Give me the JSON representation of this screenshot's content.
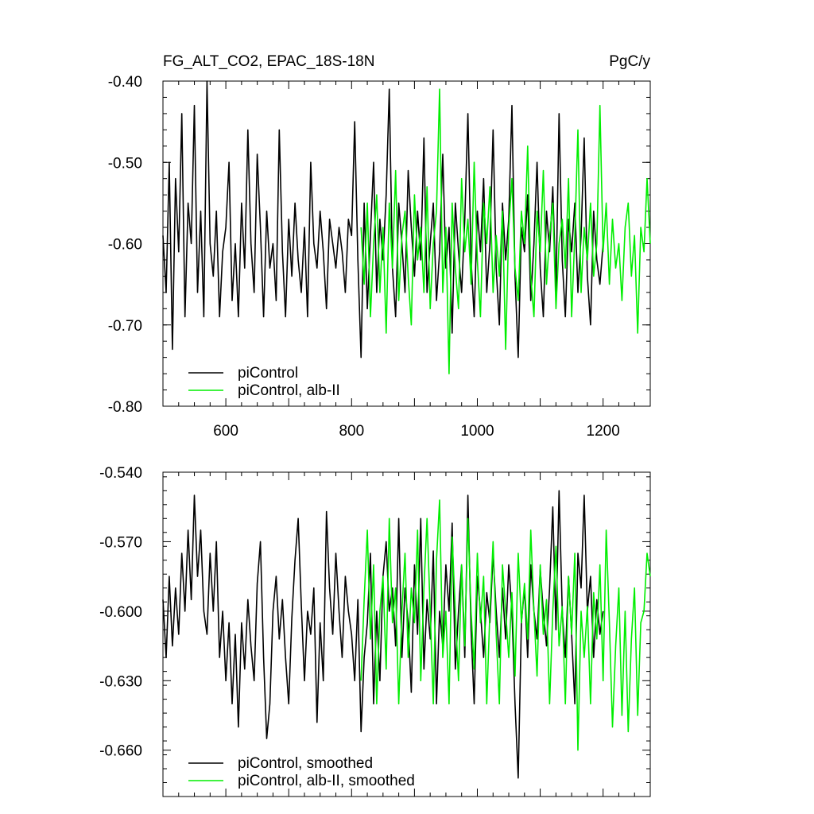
{
  "header": {
    "title": "FG_ALT_CO2, EPAC_18S-18N",
    "units": "PgC/y"
  },
  "colors": {
    "piControl": "#000000",
    "alb": "#00ee00"
  },
  "chart_data": [
    {
      "type": "line",
      "panel": "top",
      "xlim": [
        500,
        1275
      ],
      "ylim": [
        -0.8,
        -0.4
      ],
      "xticks": [
        600,
        800,
        1000,
        1200
      ],
      "xtick_labels": [
        "600",
        "800",
        "1000",
        "1200"
      ],
      "yticks": [
        -0.8,
        -0.7,
        -0.6,
        -0.5,
        -0.4
      ],
      "ytick_labels": [
        "-0.80",
        "-0.70",
        "-0.60",
        "-0.50",
        "-0.40"
      ],
      "legend_position": "bottom-left",
      "series": [
        {
          "name": "piControl",
          "color": "#000000",
          "x": [
            500,
            505,
            510,
            515,
            520,
            525,
            530,
            535,
            540,
            545,
            550,
            555,
            560,
            565,
            570,
            575,
            580,
            585,
            590,
            595,
            600,
            605,
            610,
            615,
            620,
            625,
            630,
            635,
            640,
            645,
            650,
            655,
            660,
            665,
            670,
            675,
            680,
            685,
            690,
            695,
            700,
            705,
            710,
            715,
            720,
            725,
            730,
            735,
            740,
            745,
            750,
            755,
            760,
            765,
            770,
            775,
            780,
            785,
            790,
            795,
            800,
            805,
            810,
            815,
            820,
            825,
            830,
            835,
            840,
            845,
            850,
            855,
            860,
            865,
            870,
            875,
            880,
            885,
            890,
            895,
            900,
            905,
            910,
            915,
            920,
            925,
            930,
            935,
            940,
            945,
            950,
            955,
            960,
            965,
            970,
            975,
            980,
            985,
            990,
            995,
            1000,
            1005,
            1010,
            1015,
            1020,
            1025,
            1030,
            1035,
            1040,
            1045,
            1050,
            1055,
            1060,
            1065,
            1070,
            1075,
            1080,
            1085,
            1090,
            1095,
            1100,
            1105,
            1110,
            1115,
            1120,
            1125,
            1130,
            1135,
            1140,
            1145,
            1150,
            1155,
            1160,
            1165,
            1170,
            1175,
            1180,
            1185,
            1190,
            1195,
            1200
          ],
          "y": [
            -0.59,
            -0.66,
            -0.5,
            -0.73,
            -0.52,
            -0.61,
            -0.44,
            -0.69,
            -0.55,
            -0.6,
            -0.43,
            -0.66,
            -0.56,
            -0.69,
            -0.4,
            -0.6,
            -0.64,
            -0.56,
            -0.69,
            -0.61,
            -0.58,
            -0.5,
            -0.67,
            -0.6,
            -0.69,
            -0.55,
            -0.63,
            -0.46,
            -0.6,
            -0.66,
            -0.49,
            -0.58,
            -0.69,
            -0.56,
            -0.63,
            -0.6,
            -0.67,
            -0.46,
            -0.61,
            -0.69,
            -0.57,
            -0.64,
            -0.55,
            -0.62,
            -0.66,
            -0.58,
            -0.69,
            -0.5,
            -0.6,
            -0.63,
            -0.56,
            -0.61,
            -0.68,
            -0.57,
            -0.6,
            -0.63,
            -0.58,
            -0.61,
            -0.66,
            -0.57,
            -0.59,
            -0.45,
            -0.62,
            -0.74,
            -0.55,
            -0.68,
            -0.59,
            -0.5,
            -0.66,
            -0.57,
            -0.62,
            -0.54,
            -0.41,
            -0.63,
            -0.69,
            -0.55,
            -0.6,
            -0.66,
            -0.51,
            -0.58,
            -0.64,
            -0.56,
            -0.62,
            -0.47,
            -0.66,
            -0.6,
            -0.55,
            -0.67,
            -0.61,
            -0.49,
            -0.63,
            -0.58,
            -0.71,
            -0.55,
            -0.61,
            -0.66,
            -0.57,
            -0.44,
            -0.62,
            -0.69,
            -0.56,
            -0.61,
            -0.52,
            -0.66,
            -0.6,
            -0.46,
            -0.63,
            -0.7,
            -0.55,
            -0.62,
            -0.57,
            -0.43,
            -0.64,
            -0.74,
            -0.58,
            -0.61,
            -0.54,
            -0.67,
            -0.6,
            -0.5,
            -0.63,
            -0.69,
            -0.56,
            -0.61,
            -0.53,
            -0.66,
            -0.44,
            -0.62,
            -0.69,
            -0.57,
            -0.61,
            -0.55,
            -0.66,
            -0.59,
            -0.47,
            -0.64,
            -0.7,
            -0.56,
            -0.62,
            -0.65,
            -0.6
          ]
        },
        {
          "name": "piControl, alb-II",
          "color": "#00ee00",
          "x": [
            815,
            820,
            825,
            830,
            835,
            840,
            845,
            850,
            855,
            860,
            865,
            870,
            875,
            880,
            885,
            890,
            895,
            900,
            905,
            910,
            915,
            920,
            925,
            930,
            935,
            940,
            945,
            950,
            955,
            960,
            965,
            970,
            975,
            980,
            985,
            990,
            995,
            1000,
            1005,
            1010,
            1015,
            1020,
            1025,
            1030,
            1035,
            1040,
            1045,
            1050,
            1055,
            1060,
            1065,
            1070,
            1075,
            1080,
            1085,
            1090,
            1095,
            1100,
            1105,
            1110,
            1115,
            1120,
            1125,
            1130,
            1135,
            1140,
            1145,
            1150,
            1155,
            1160,
            1165,
            1170,
            1175,
            1180,
            1185,
            1190,
            1195,
            1200,
            1205,
            1210,
            1215,
            1220,
            1225,
            1230,
            1235,
            1240,
            1245,
            1250,
            1255,
            1260,
            1265,
            1270,
            1275
          ],
          "y": [
            -0.58,
            -0.65,
            -0.55,
            -0.69,
            -0.6,
            -0.54,
            -0.66,
            -0.58,
            -0.71,
            -0.55,
            -0.63,
            -0.51,
            -0.67,
            -0.59,
            -0.56,
            -0.64,
            -0.7,
            -0.54,
            -0.62,
            -0.58,
            -0.66,
            -0.53,
            -0.68,
            -0.6,
            -0.56,
            -0.41,
            -0.66,
            -0.58,
            -0.76,
            -0.55,
            -0.63,
            -0.68,
            -0.52,
            -0.61,
            -0.57,
            -0.65,
            -0.5,
            -0.62,
            -0.69,
            -0.55,
            -0.6,
            -0.53,
            -0.66,
            -0.59,
            -0.64,
            -0.56,
            -0.73,
            -0.58,
            -0.52,
            -0.63,
            -0.67,
            -0.56,
            -0.6,
            -0.48,
            -0.64,
            -0.69,
            -0.56,
            -0.61,
            -0.51,
            -0.65,
            -0.59,
            -0.55,
            -0.68,
            -0.6,
            -0.57,
            -0.63,
            -0.52,
            -0.69,
            -0.59,
            -0.46,
            -0.66,
            -0.58,
            -0.62,
            -0.55,
            -0.64,
            -0.6,
            -0.43,
            -0.61,
            -0.55,
            -0.65,
            -0.57,
            -0.63,
            -0.6,
            -0.67,
            -0.58,
            -0.55,
            -0.64,
            -0.59,
            -0.71,
            -0.58,
            -0.61,
            -0.52,
            -0.6
          ]
        }
      ]
    },
    {
      "type": "line",
      "panel": "bottom",
      "xlim": [
        500,
        1275
      ],
      "ylim": [
        -0.68,
        -0.54
      ],
      "xticks": [
        600,
        800,
        1000,
        1200
      ],
      "yticks": [
        -0.66,
        -0.63,
        -0.6,
        -0.57,
        -0.54
      ],
      "ytick_labels": [
        "-0.660",
        "-0.630",
        "-0.600",
        "-0.570",
        "-0.540"
      ],
      "legend_position": "bottom-left",
      "series": [
        {
          "name": "piControl, smoothed",
          "color": "#000000",
          "x": [
            500,
            505,
            510,
            515,
            520,
            525,
            530,
            535,
            540,
            545,
            550,
            555,
            560,
            565,
            570,
            575,
            580,
            585,
            590,
            595,
            600,
            605,
            610,
            615,
            620,
            625,
            630,
            635,
            640,
            645,
            650,
            655,
            660,
            665,
            670,
            675,
            680,
            685,
            690,
            695,
            700,
            705,
            710,
            715,
            720,
            725,
            730,
            735,
            740,
            745,
            750,
            755,
            760,
            765,
            770,
            775,
            780,
            785,
            790,
            795,
            800,
            805,
            810,
            815,
            820,
            825,
            830,
            835,
            840,
            845,
            850,
            855,
            860,
            865,
            870,
            875,
            880,
            885,
            890,
            895,
            900,
            905,
            910,
            915,
            920,
            925,
            930,
            935,
            940,
            945,
            950,
            955,
            960,
            965,
            970,
            975,
            980,
            985,
            990,
            995,
            1000,
            1005,
            1010,
            1015,
            1020,
            1025,
            1030,
            1035,
            1040,
            1045,
            1050,
            1055,
            1060,
            1065,
            1070,
            1075,
            1080,
            1085,
            1090,
            1095,
            1100,
            1105,
            1110,
            1115,
            1120,
            1125,
            1130,
            1135,
            1140,
            1145,
            1150,
            1155,
            1160,
            1165,
            1170,
            1175,
            1180,
            1185,
            1190,
            1195,
            1200
          ],
          "y": [
            -0.595,
            -0.62,
            -0.585,
            -0.615,
            -0.59,
            -0.61,
            -0.575,
            -0.6,
            -0.565,
            -0.595,
            -0.55,
            -0.585,
            -0.565,
            -0.6,
            -0.61,
            -0.575,
            -0.6,
            -0.57,
            -0.62,
            -0.6,
            -0.63,
            -0.605,
            -0.64,
            -0.61,
            -0.65,
            -0.605,
            -0.625,
            -0.595,
            -0.615,
            -0.63,
            -0.588,
            -0.57,
            -0.62,
            -0.655,
            -0.64,
            -0.6,
            -0.585,
            -0.612,
            -0.595,
            -0.62,
            -0.64,
            -0.603,
            -0.578,
            -0.56,
            -0.597,
            -0.63,
            -0.6,
            -0.61,
            -0.59,
            -0.648,
            -0.605,
            -0.63,
            -0.557,
            -0.59,
            -0.61,
            -0.575,
            -0.6,
            -0.62,
            -0.585,
            -0.6,
            -0.61,
            -0.63,
            -0.595,
            -0.652,
            -0.62,
            -0.605,
            -0.575,
            -0.64,
            -0.6,
            -0.63,
            -0.585,
            -0.57,
            -0.6,
            -0.59,
            -0.615,
            -0.56,
            -0.62,
            -0.59,
            -0.605,
            -0.635,
            -0.58,
            -0.61,
            -0.56,
            -0.625,
            -0.595,
            -0.612,
            -0.574,
            -0.64,
            -0.6,
            -0.615,
            -0.58,
            -0.6,
            -0.562,
            -0.625,
            -0.6,
            -0.58,
            -0.62,
            -0.55,
            -0.608,
            -0.64,
            -0.585,
            -0.6,
            -0.62,
            -0.592,
            -0.605,
            -0.575,
            -0.6,
            -0.62,
            -0.59,
            -0.612,
            -0.58,
            -0.6,
            -0.64,
            -0.672,
            -0.605,
            -0.59,
            -0.62,
            -0.58,
            -0.6,
            -0.612,
            -0.582,
            -0.6,
            -0.615,
            -0.59,
            -0.555,
            -0.608,
            -0.548,
            -0.6,
            -0.62,
            -0.585,
            -0.61,
            -0.64,
            -0.575,
            -0.59,
            -0.55,
            -0.6,
            -0.585,
            -0.62,
            -0.595,
            -0.61,
            -0.6
          ]
        },
        {
          "name": "piControl, alb-II, smoothed",
          "color": "#00ee00",
          "x": [
            815,
            820,
            825,
            830,
            835,
            840,
            845,
            850,
            855,
            860,
            865,
            870,
            875,
            880,
            885,
            890,
            895,
            900,
            905,
            910,
            915,
            920,
            925,
            930,
            935,
            940,
            945,
            950,
            955,
            960,
            965,
            970,
            975,
            980,
            985,
            990,
            995,
            1000,
            1005,
            1010,
            1015,
            1020,
            1025,
            1030,
            1035,
            1040,
            1045,
            1050,
            1055,
            1060,
            1065,
            1070,
            1075,
            1080,
            1085,
            1090,
            1095,
            1100,
            1105,
            1110,
            1115,
            1120,
            1125,
            1130,
            1135,
            1140,
            1145,
            1150,
            1155,
            1160,
            1165,
            1170,
            1175,
            1180,
            1185,
            1190,
            1195,
            1200,
            1205,
            1210,
            1215,
            1220,
            1225,
            1230,
            1235,
            1240,
            1245,
            1250,
            1255,
            1260,
            1265,
            1270,
            1275
          ],
          "y": [
            -0.63,
            -0.595,
            -0.565,
            -0.612,
            -0.58,
            -0.64,
            -0.6,
            -0.585,
            -0.625,
            -0.56,
            -0.605,
            -0.59,
            -0.64,
            -0.6,
            -0.575,
            -0.62,
            -0.59,
            -0.605,
            -0.565,
            -0.63,
            -0.59,
            -0.56,
            -0.6,
            -0.64,
            -0.578,
            -0.552,
            -0.62,
            -0.6,
            -0.64,
            -0.568,
            -0.6,
            -0.63,
            -0.58,
            -0.615,
            -0.56,
            -0.6,
            -0.625,
            -0.575,
            -0.605,
            -0.585,
            -0.64,
            -0.6,
            -0.57,
            -0.61,
            -0.64,
            -0.58,
            -0.6,
            -0.62,
            -0.592,
            -0.628,
            -0.575,
            -0.605,
            -0.588,
            -0.612,
            -0.565,
            -0.6,
            -0.628,
            -0.58,
            -0.61,
            -0.595,
            -0.64,
            -0.6,
            -0.572,
            -0.615,
            -0.598,
            -0.64,
            -0.585,
            -0.61,
            -0.575,
            -0.66,
            -0.6,
            -0.62,
            -0.598,
            -0.64,
            -0.592,
            -0.612,
            -0.58,
            -0.63,
            -0.565,
            -0.605,
            -0.65,
            -0.615,
            -0.59,
            -0.645,
            -0.6,
            -0.652,
            -0.612,
            -0.59,
            -0.645,
            -0.605,
            -0.6,
            -0.575,
            -0.585
          ]
        }
      ]
    }
  ]
}
